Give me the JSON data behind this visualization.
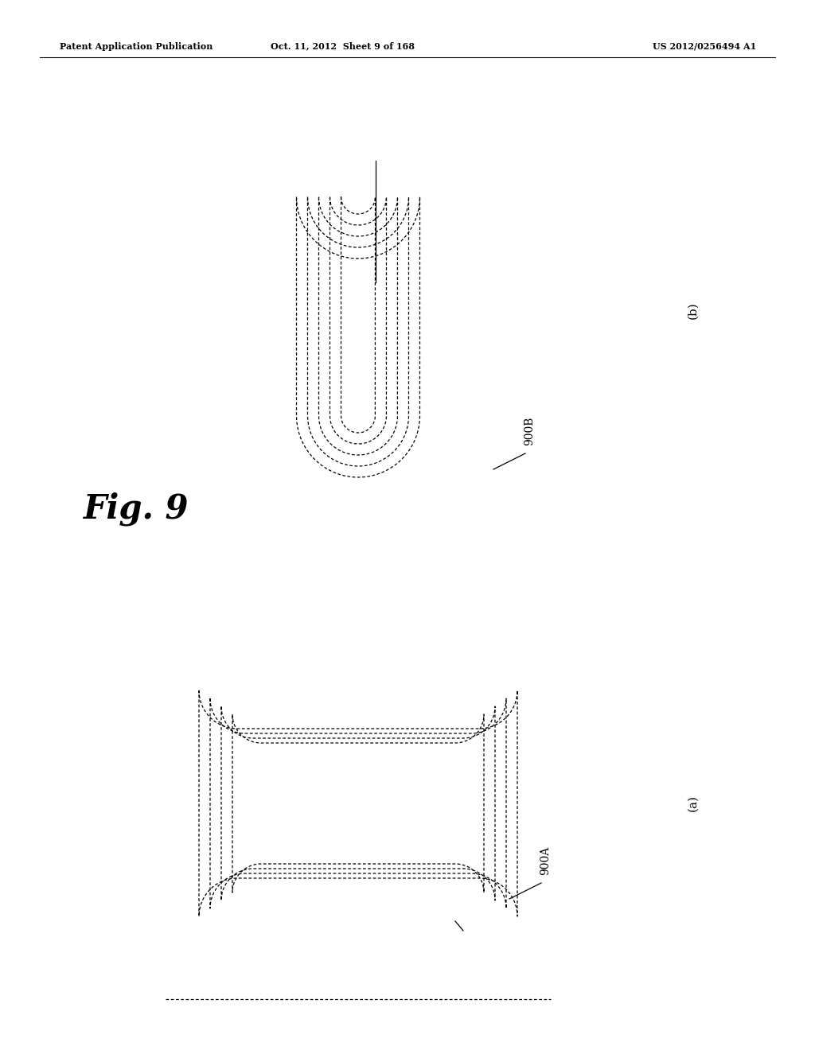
{
  "header_left": "Patent Application Publication",
  "header_mid": "Oct. 11, 2012  Sheet 9 of 168",
  "header_right": "US 2012/0256494 A1",
  "fig_label": "Fig. 9",
  "label_900B": "900B",
  "label_b": "(b)",
  "label_900A": "900A",
  "label_a": "(a)",
  "bg_color": "#ffffff",
  "line_color": "#000000"
}
